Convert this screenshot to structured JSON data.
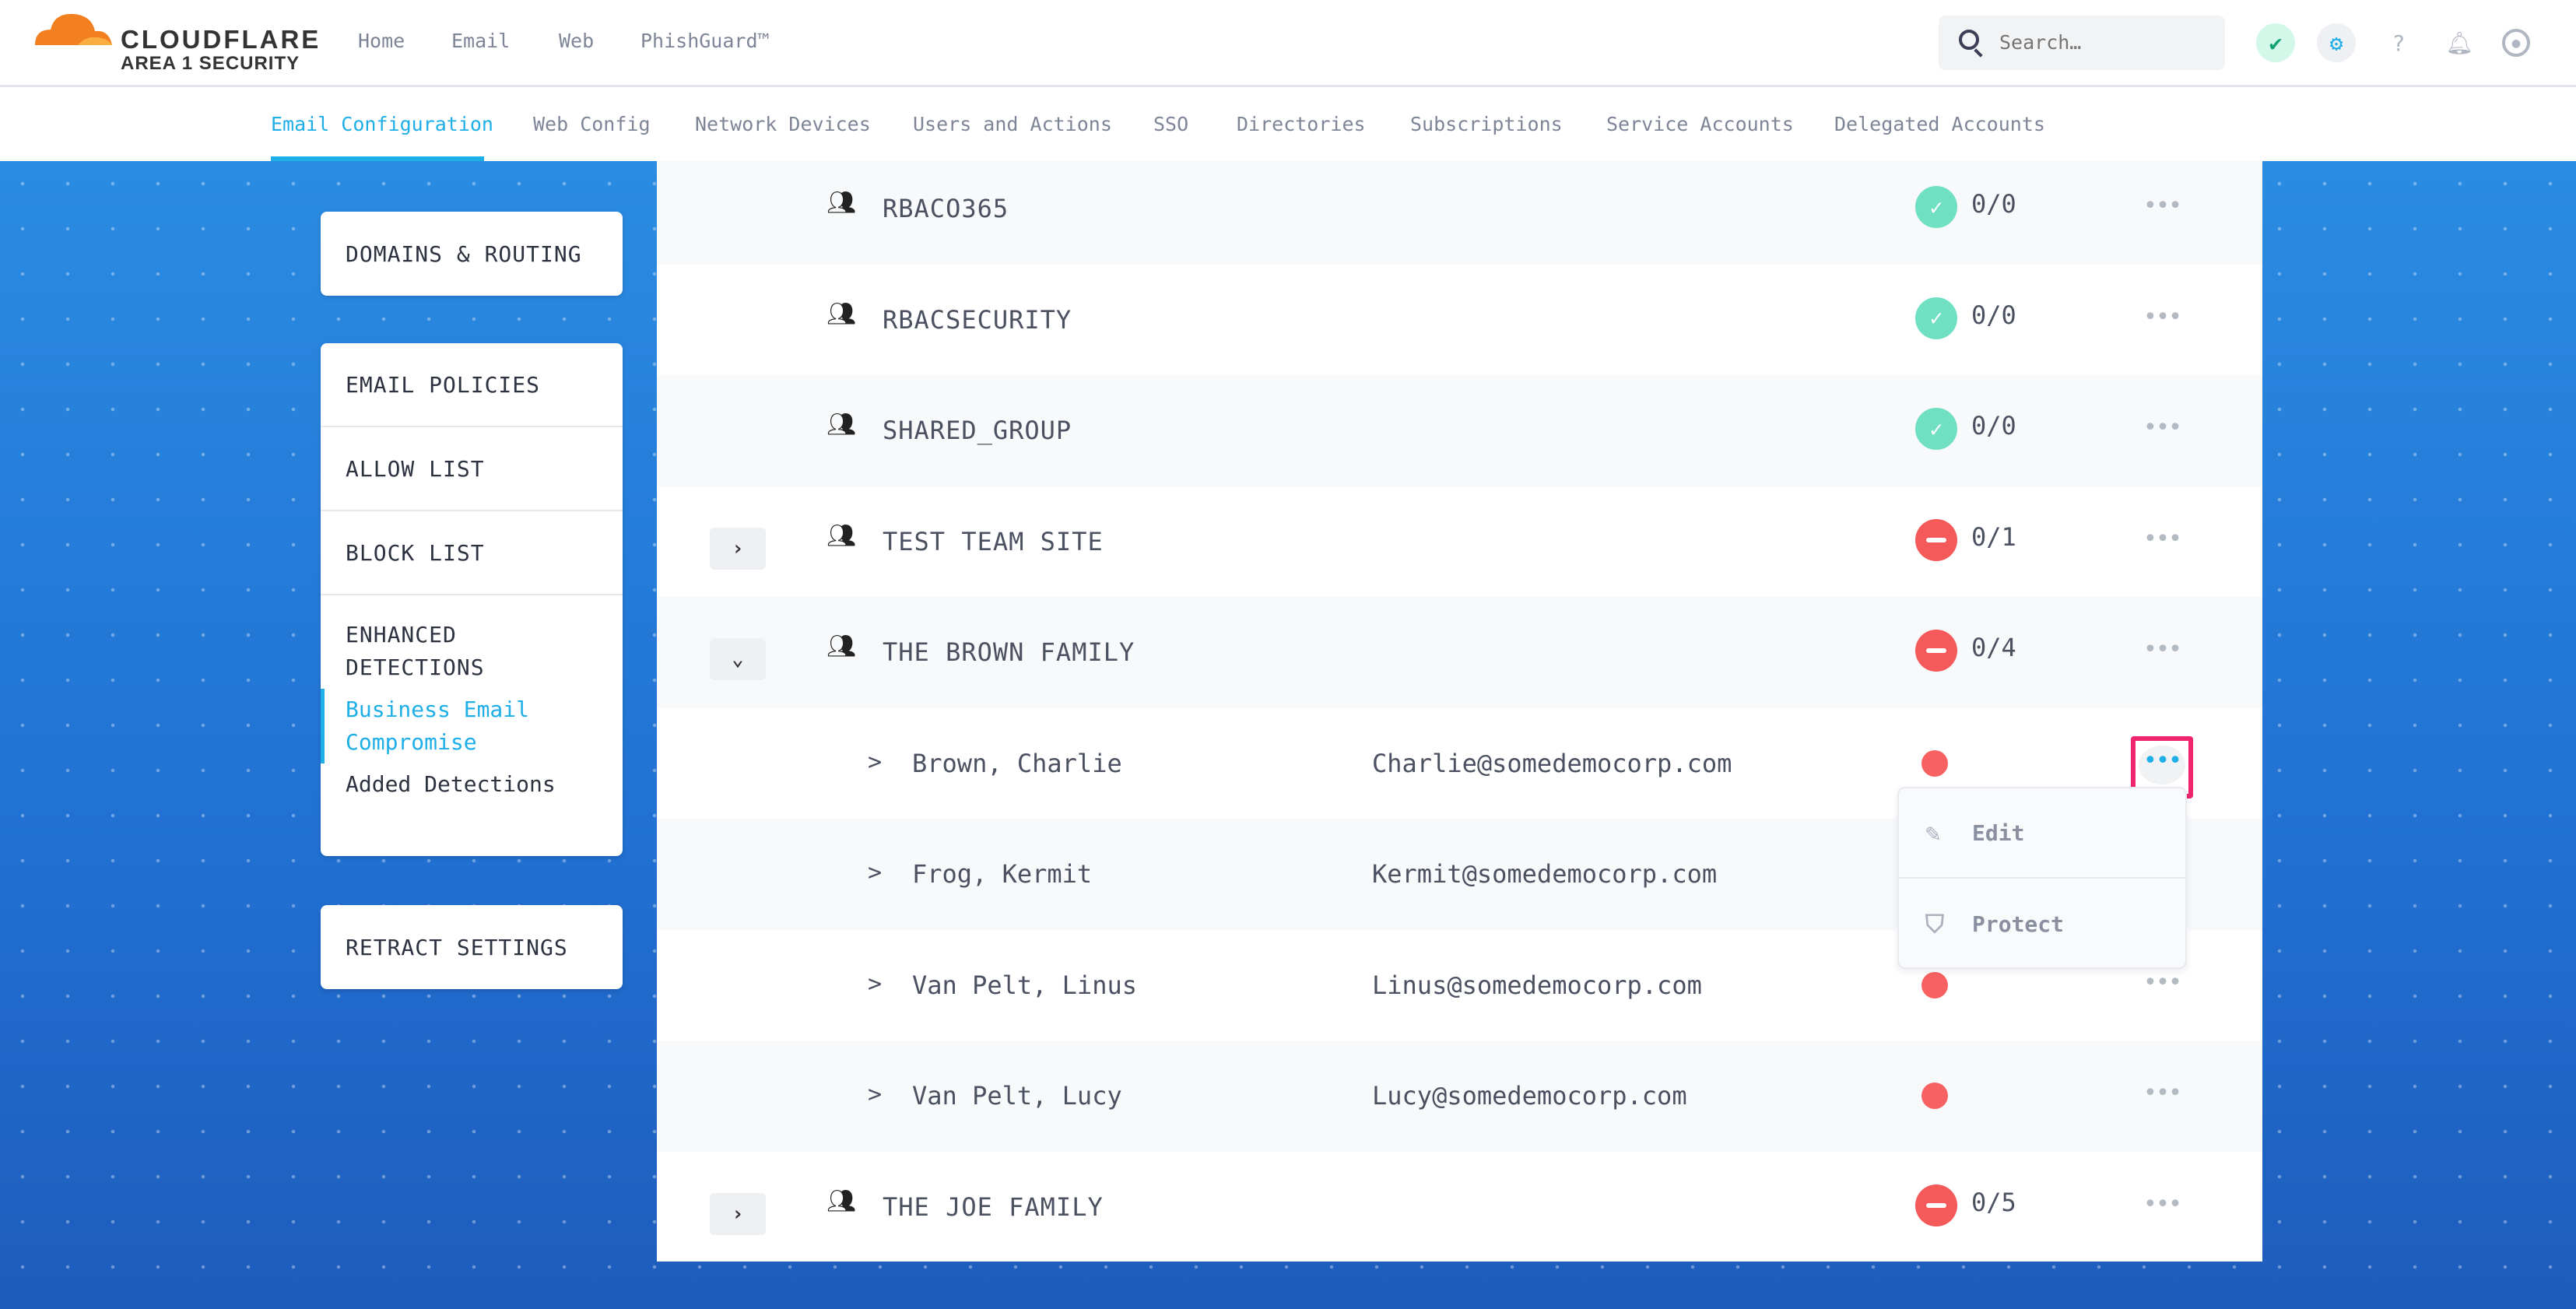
{
  "brand": {
    "name": "CLOUDFLARE",
    "subtitle": "AREA 1 SECURITY",
    "orange": "#f38020"
  },
  "topnav": [
    "Home",
    "Email",
    "Web",
    "PhishGuard™"
  ],
  "search": {
    "placeholder": "Search…"
  },
  "header_icons": [
    "shield-check-icon",
    "gear-icon",
    "help-icon",
    "bell-icon",
    "user-icon"
  ],
  "subnav": {
    "active": "Email Configuration",
    "items": [
      "Email Configuration",
      "Web Config",
      "Network Devices",
      "Users and Actions",
      "SSO",
      "Directories",
      "Subscriptions",
      "Service Accounts",
      "Delegated Accounts"
    ]
  },
  "sidebar": {
    "card1": [
      "DOMAINS & ROUTING"
    ],
    "card2": [
      "EMAIL POLICIES",
      "ALLOW LIST",
      "BLOCK LIST"
    ],
    "enhanced": "ENHANCED DETECTIONS",
    "enhanced_items": [
      "Business Email Compromise",
      "Added Detections"
    ],
    "card3": [
      "RETRACT SETTINGS"
    ]
  },
  "rows": [
    {
      "type": "group",
      "name": "RBACO365",
      "status": "ok",
      "count": "0/0"
    },
    {
      "type": "group",
      "name": "RBACSECURITY",
      "status": "ok",
      "count": "0/0"
    },
    {
      "type": "group",
      "name": "SHARED_GROUP",
      "status": "ok",
      "count": "0/0"
    },
    {
      "type": "group",
      "name": "TEST TEAM SITE",
      "status": "bad",
      "count": "0/1",
      "expand": "›"
    },
    {
      "type": "group",
      "name": "THE BROWN FAMILY",
      "status": "bad",
      "count": "0/4",
      "expand": "⌄"
    },
    {
      "type": "user",
      "name": "Brown, Charlie",
      "email": "Charlie@somedemocorp.com",
      "chev": ">",
      "active": true
    },
    {
      "type": "user",
      "name": "Frog, Kermit",
      "email": "Kermit@somedemocorp.com",
      "chev": ">"
    },
    {
      "type": "user",
      "name": "Van Pelt, Linus",
      "email": "Linus@somedemocorp.com",
      "chev": ">"
    },
    {
      "type": "user",
      "name": "Van Pelt, Lucy",
      "email": "Lucy@somedemocorp.com",
      "chev": ">"
    },
    {
      "type": "group",
      "name": "THE JOE FAMILY",
      "status": "bad",
      "count": "0/5",
      "expand": "›"
    }
  ],
  "more_label": "•••",
  "context_menu": {
    "items": [
      {
        "label": "Edit",
        "icon": "pencil-icon"
      },
      {
        "label": "Protect",
        "icon": "shield-icon"
      }
    ]
  },
  "colors": {
    "accent": "#1eaee8",
    "ok": "#6fe0c2",
    "bad": "#f55a5a",
    "highlight": "#f0256d"
  }
}
